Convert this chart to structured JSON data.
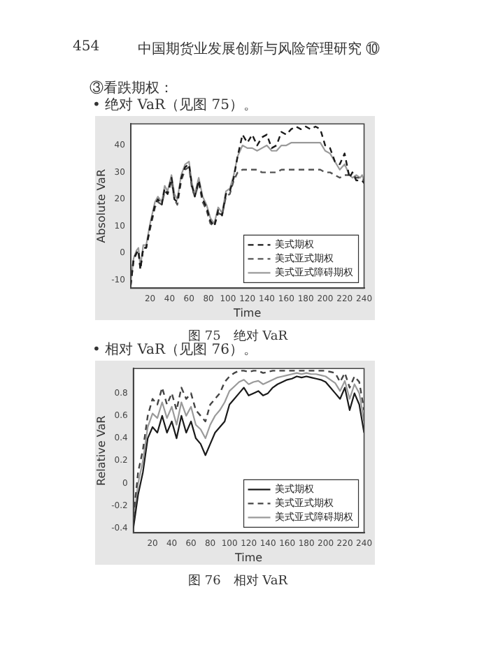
{
  "chart_data": [
    {
      "type": "line",
      "title": "图 75　绝对 VaR",
      "subtitle": "• 绝对 VaR（见图 75）。",
      "annotations": [
        "454",
        "中国期货业发展创新与风险管理研究 ⑩",
        "③看跌期权："
      ],
      "xlabel": "Time",
      "ylabel": "Absolute VaR",
      "legend": "bottom right",
      "grid": false,
      "marker": "none",
      "xlim": [
        0,
        240
      ],
      "xticks": [
        20,
        40,
        60,
        80,
        100,
        120,
        140,
        160,
        180,
        200,
        220,
        240
      ],
      "ylim": [
        -13,
        48
      ],
      "yticks": [
        -10,
        0,
        10,
        20,
        30,
        40
      ],
      "x": [
        0,
        3,
        6,
        8,
        10,
        13,
        16,
        20,
        25,
        28,
        32,
        35,
        38,
        42,
        45,
        48,
        52,
        56,
        60,
        63,
        66,
        70,
        74,
        78,
        82,
        86,
        90,
        94,
        98,
        102,
        106,
        110,
        115,
        120,
        125,
        130,
        135,
        140,
        145,
        150,
        155,
        160,
        165,
        170,
        175,
        180,
        185,
        190,
        195,
        200,
        205,
        210,
        215,
        220,
        225,
        228,
        232,
        236,
        238,
        240
      ],
      "series": [
        {
          "name": "美式期权",
          "color": "#1a1a1a",
          "line_style": "dashed",
          "values": [
            -12,
            -2,
            0,
            1,
            -6,
            2,
            2,
            10,
            18,
            20,
            18,
            24,
            22,
            28,
            20,
            19,
            28,
            32,
            33,
            25,
            21,
            27,
            20,
            17,
            12,
            10,
            16,
            14,
            22,
            23,
            28,
            36,
            44,
            41,
            44,
            40,
            43,
            44,
            39,
            40,
            45,
            44,
            46,
            47,
            46,
            47,
            46,
            47,
            46,
            40,
            39,
            34,
            33,
            37,
            28,
            30,
            27,
            27,
            27,
            26
          ]
        },
        {
          "name": "美式亚式期权",
          "color": "#555555",
          "line_style": "dashed",
          "values": [
            -12,
            -3,
            0,
            1,
            -6,
            2,
            2,
            9,
            17,
            19,
            18,
            23,
            22,
            27,
            20,
            18,
            27,
            31,
            32,
            24,
            21,
            26,
            19,
            16,
            11,
            10,
            15,
            14,
            21,
            22,
            27,
            30,
            31,
            31,
            31,
            31,
            30,
            30,
            30,
            30,
            31,
            31,
            31,
            31,
            31,
            31,
            31,
            31,
            31,
            30,
            30,
            29,
            28,
            29,
            29,
            29,
            28,
            28,
            28,
            27
          ]
        },
        {
          "name": "美式亚式障碍期权",
          "color": "#9a9a9a",
          "line_style": "solid",
          "values": [
            -11,
            -2,
            1,
            2,
            -5,
            3,
            3,
            11,
            19,
            21,
            19,
            25,
            23,
            29,
            22,
            20,
            29,
            33,
            34,
            26,
            22,
            28,
            21,
            18,
            13,
            11,
            17,
            15,
            23,
            24,
            29,
            36,
            40,
            39,
            39,
            38,
            39,
            40,
            38,
            38,
            40,
            40,
            41,
            41,
            41,
            41,
            41,
            41,
            41,
            38,
            37,
            34,
            31,
            33,
            29,
            28,
            29,
            28,
            29,
            27
          ]
        }
      ]
    },
    {
      "type": "line",
      "title": "图 76　相对 VaR",
      "subtitle": "• 相对 VaR（见图 76）。",
      "xlabel": "Time",
      "ylabel": "Relative VaR",
      "legend": "bottom right",
      "grid": false,
      "marker": "none",
      "xlim": [
        0,
        240
      ],
      "xticks": [
        20,
        40,
        60,
        80,
        100,
        120,
        140,
        160,
        180,
        200,
        220,
        240
      ],
      "ylim": [
        -0.44,
        1.02
      ],
      "yticks": [
        -0.4,
        -0.2,
        0,
        0.2,
        0.4,
        0.6,
        0.8
      ],
      "x": [
        0,
        5,
        10,
        15,
        20,
        25,
        30,
        35,
        40,
        45,
        50,
        55,
        60,
        65,
        70,
        75,
        80,
        85,
        90,
        95,
        100,
        105,
        110,
        115,
        120,
        125,
        130,
        135,
        140,
        145,
        150,
        155,
        160,
        165,
        170,
        175,
        180,
        185,
        190,
        195,
        200,
        205,
        210,
        215,
        220,
        225,
        230,
        235,
        240
      ],
      "series": [
        {
          "name": "美式期权",
          "color": "#1a1a1a",
          "line_style": "solid",
          "values": [
            -0.4,
            -0.1,
            0.1,
            0.4,
            0.5,
            0.45,
            0.6,
            0.45,
            0.55,
            0.4,
            0.6,
            0.45,
            0.55,
            0.4,
            0.35,
            0.25,
            0.35,
            0.45,
            0.5,
            0.55,
            0.7,
            0.75,
            0.8,
            0.85,
            0.78,
            0.8,
            0.82,
            0.78,
            0.8,
            0.85,
            0.88,
            0.9,
            0.92,
            0.93,
            0.95,
            0.94,
            0.95,
            0.94,
            0.93,
            0.92,
            0.9,
            0.85,
            0.8,
            0.75,
            0.85,
            0.65,
            0.8,
            0.7,
            0.45
          ]
        },
        {
          "name": "美式亚式期权",
          "color": "#444444",
          "line_style": "dashed",
          "values": [
            -0.3,
            0.1,
            0.3,
            0.6,
            0.75,
            0.7,
            0.85,
            0.7,
            0.8,
            0.65,
            0.85,
            0.75,
            0.8,
            0.65,
            0.6,
            0.55,
            0.7,
            0.75,
            0.8,
            0.9,
            0.95,
            0.98,
            1,
            1,
            0.99,
            1,
            1,
            0.98,
            0.99,
            1,
            1,
            1,
            1,
            1,
            1,
            1,
            1,
            1,
            1,
            1,
            1,
            0.99,
            0.98,
            0.9,
            0.98,
            0.85,
            0.95,
            0.9,
            0.65
          ]
        },
        {
          "name": "美式亚式障碍期权",
          "color": "#9a9a9a",
          "line_style": "solid",
          "values": [
            -0.35,
            0,
            0.2,
            0.5,
            0.62,
            0.58,
            0.72,
            0.58,
            0.68,
            0.52,
            0.72,
            0.6,
            0.68,
            0.52,
            0.48,
            0.4,
            0.52,
            0.6,
            0.65,
            0.72,
            0.82,
            0.86,
            0.9,
            0.92,
            0.88,
            0.9,
            0.91,
            0.88,
            0.9,
            0.92,
            0.94,
            0.95,
            0.96,
            0.97,
            0.98,
            0.97,
            0.98,
            0.97,
            0.97,
            0.96,
            0.95,
            0.92,
            0.89,
            0.82,
            0.91,
            0.75,
            0.88,
            0.8,
            0.55
          ]
        }
      ]
    }
  ]
}
